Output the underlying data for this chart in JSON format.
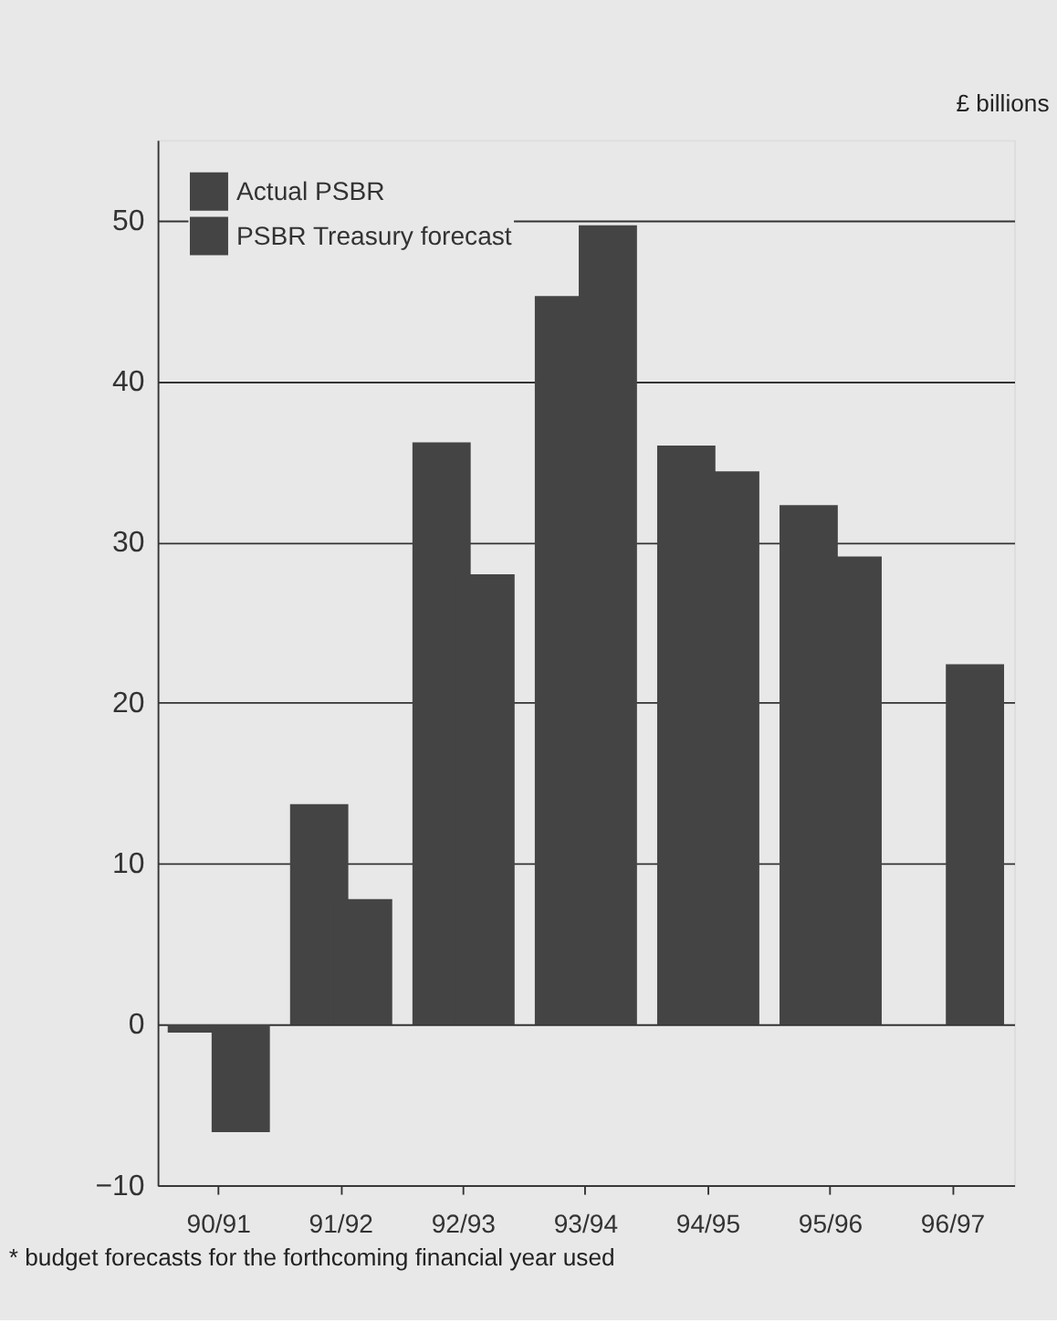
{
  "chart_data": {
    "type": "bar",
    "ylabel": "£ billions",
    "categories": [
      "90/91",
      "91/92",
      "92/93",
      "93/94",
      "94/95",
      "95/96",
      "96/97"
    ],
    "series": [
      {
        "name": "Actual PSBR",
        "color": "#444444",
        "values": [
          -0.5,
          13.7,
          36.2,
          45.3,
          36.0,
          32.3,
          null
        ]
      },
      {
        "name": "PSBR Treasury forecast",
        "color": "#444444",
        "values": [
          -6.7,
          7.8,
          28.0,
          49.7,
          34.4,
          29.1,
          22.4
        ]
      }
    ],
    "ylim": [
      -10,
      55
    ],
    "yticks": [
      -10,
      0,
      10,
      20,
      30,
      40,
      50
    ],
    "grid": "y",
    "legend": "top left",
    "annotations": [
      "* budget  forecasts for the forthcoming financial year used"
    ]
  }
}
